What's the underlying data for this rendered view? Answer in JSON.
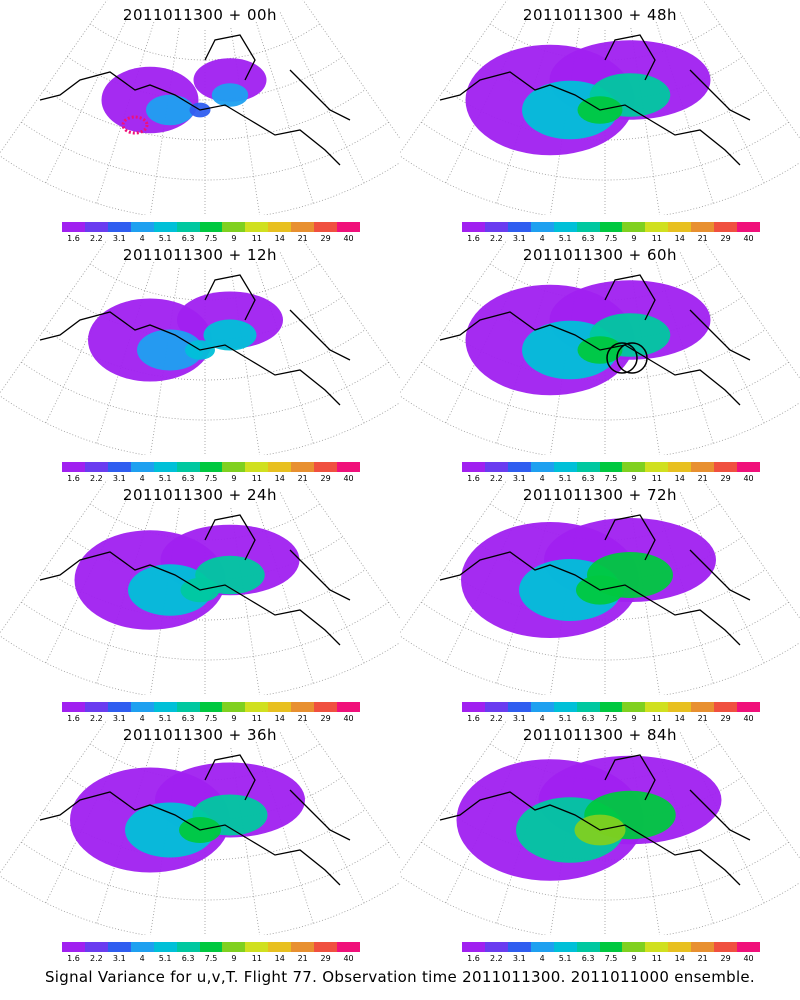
{
  "footer": "Signal Variance for u,v,T. Flight 77. Observation time 2011011300. 2011011000 ensemble.",
  "colorbar": {
    "labels": [
      "1.6",
      "2.2",
      "3.1",
      "4",
      "5.1",
      "6.3",
      "7.5",
      "9",
      "11",
      "14",
      "21",
      "29",
      "40"
    ],
    "colors": [
      "#a020f0",
      "#6a3cf0",
      "#2f5ef0",
      "#1ea0f0",
      "#00c0d8",
      "#00c8a0",
      "#00c840",
      "#80d020",
      "#d0e020",
      "#e8c020",
      "#e89030",
      "#f05040",
      "#f0107a"
    ]
  },
  "panels": [
    {
      "title": "2011011300 + 00h"
    },
    {
      "title": "2011011300 + 48h"
    },
    {
      "title": "2011011300 + 12h"
    },
    {
      "title": "2011011300 + 60h"
    },
    {
      "title": "2011011300 + 24h"
    },
    {
      "title": "2011011300 + 72h"
    },
    {
      "title": "2011011300 + 36h"
    },
    {
      "title": "2011011300 + 84h"
    }
  ]
}
